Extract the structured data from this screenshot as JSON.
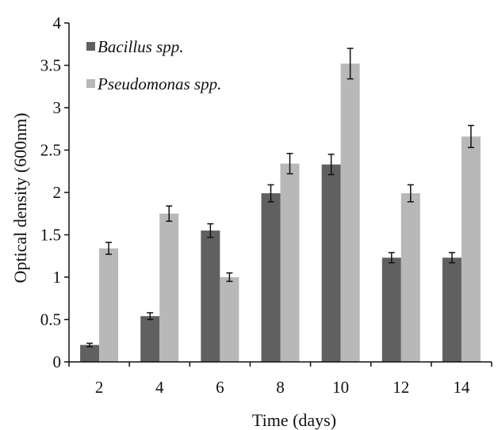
{
  "chart_data": {
    "type": "bar",
    "title": "",
    "xlabel": "Time (days)",
    "ylabel": "Optical density (600nm)",
    "categories": [
      "2",
      "4",
      "6",
      "8",
      "10",
      "12",
      "14"
    ],
    "ylim": [
      0,
      4
    ],
    "yticks": [
      "0",
      "0.5",
      "1",
      "1.5",
      "2",
      "2.5",
      "3",
      "3.5",
      "4"
    ],
    "grid": false,
    "legend": "top-left",
    "series": [
      {
        "name": "Bacillus spp.",
        "color": "#606060",
        "values": [
          0.2,
          0.54,
          1.55,
          1.99,
          2.33,
          1.23,
          1.23
        ],
        "errors": [
          0.02,
          0.04,
          0.08,
          0.1,
          0.12,
          0.06,
          0.06
        ]
      },
      {
        "name": "Pseudomonas spp.",
        "color": "#b8b8b8",
        "values": [
          1.34,
          1.75,
          1.0,
          2.34,
          3.52,
          1.99,
          2.66
        ],
        "errors": [
          0.07,
          0.09,
          0.05,
          0.12,
          0.18,
          0.1,
          0.13
        ]
      }
    ]
  }
}
